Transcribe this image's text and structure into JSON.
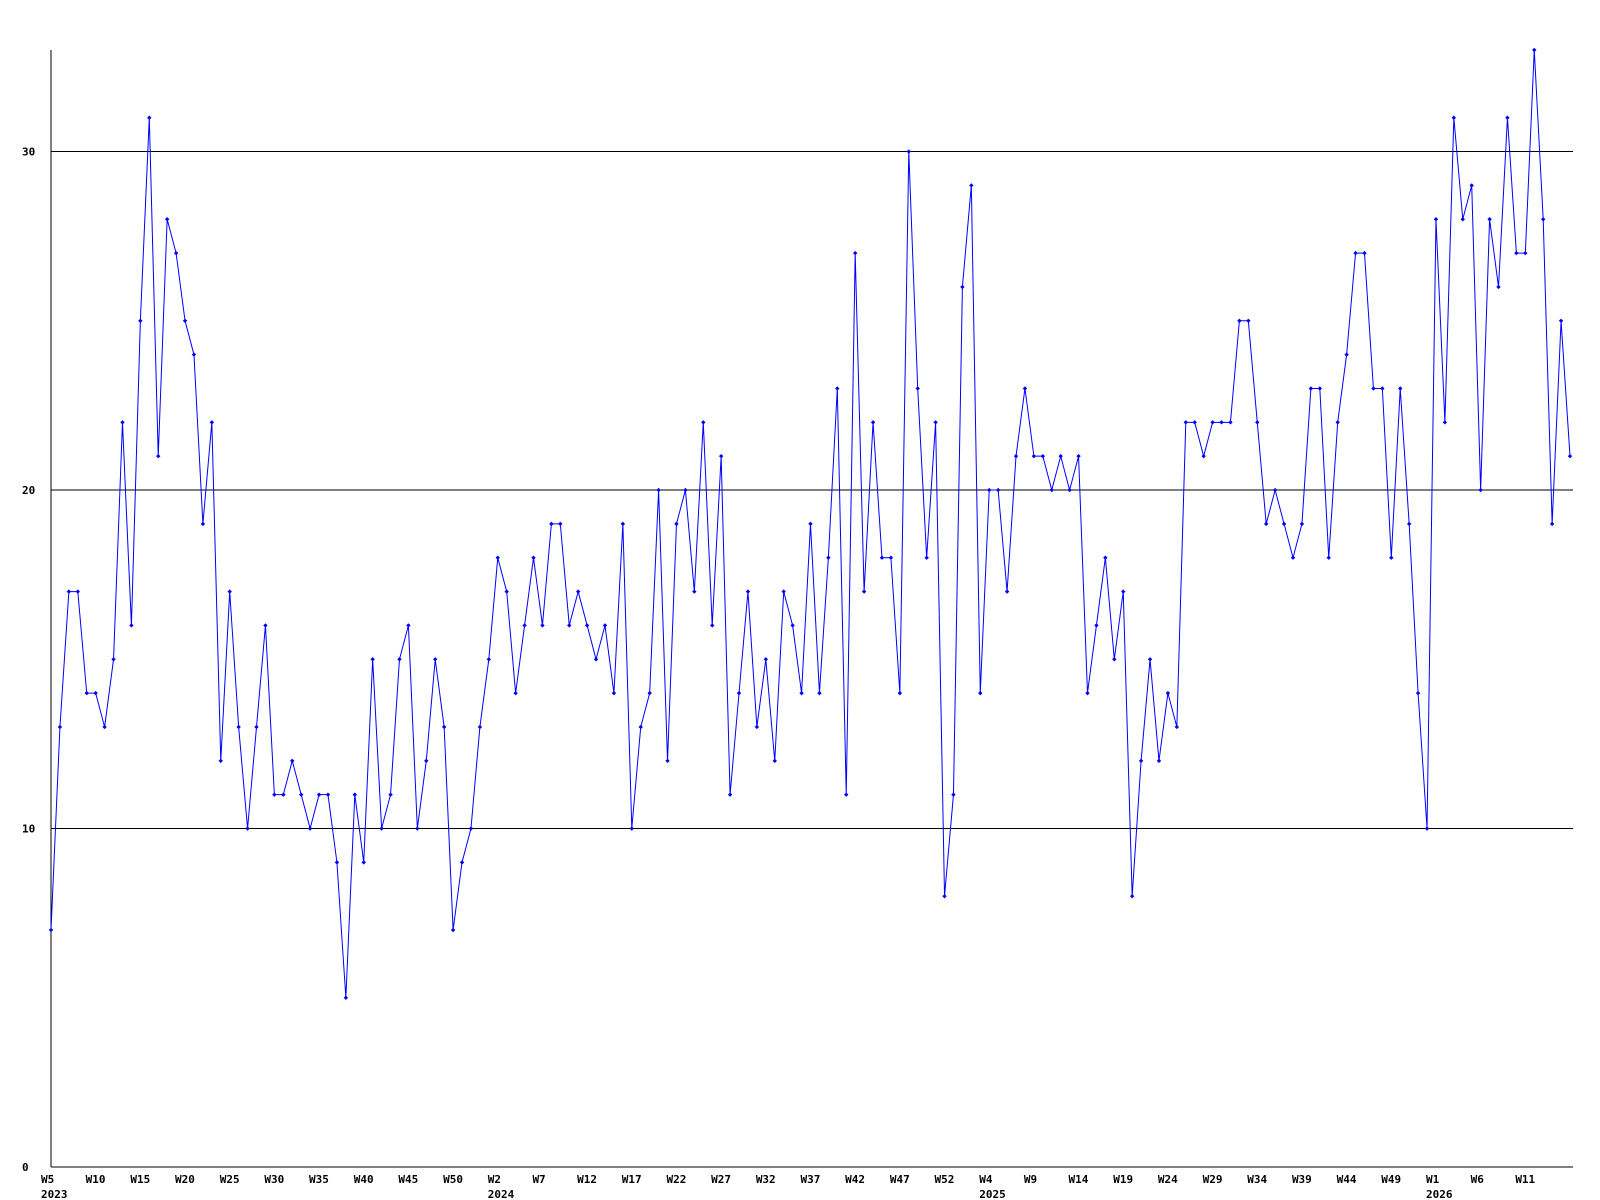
{
  "chart_data": {
    "type": "line",
    "color": "#0000ff",
    "grid": true,
    "ylim": [
      0,
      33
    ],
    "yticks": [
      0,
      10,
      20,
      30
    ],
    "categories": [
      "W5",
      null,
      null,
      null,
      null,
      "W10",
      null,
      null,
      null,
      null,
      "W15",
      null,
      null,
      null,
      null,
      "W20",
      null,
      null,
      null,
      null,
      "W25",
      null,
      null,
      null,
      null,
      "W30",
      null,
      null,
      null,
      null,
      "W35",
      null,
      null,
      null,
      null,
      "W40",
      null,
      null,
      null,
      null,
      "W45",
      null,
      null,
      null,
      null,
      "W50",
      null,
      null,
      null,
      null,
      "W2",
      null,
      null,
      null,
      null,
      "W7",
      null,
      null,
      null,
      null,
      "W12",
      null,
      null,
      null,
      null,
      "W17",
      null,
      null,
      null,
      null,
      "W22",
      null,
      null,
      null,
      null,
      "W27",
      null,
      null,
      null,
      null,
      "W32",
      null,
      null,
      null,
      null,
      "W37",
      null,
      null,
      null,
      null,
      "W42",
      null,
      null,
      null,
      null,
      "W47",
      null,
      null,
      null,
      null,
      "W52",
      null,
      null,
      null,
      null,
      "W4",
      null,
      null,
      null,
      null,
      "W9",
      null,
      null,
      null,
      null,
      "W14",
      null,
      null,
      null,
      null,
      "W19",
      null,
      null,
      null,
      null,
      "W24",
      null,
      null,
      null,
      null,
      "W29",
      null,
      null,
      null,
      null,
      "W34",
      null,
      null,
      null,
      null,
      "W39",
      null,
      null,
      null,
      null,
      "W44",
      null,
      null,
      null,
      null,
      "W49",
      null,
      null,
      null,
      null,
      "W1",
      null,
      null,
      null,
      null,
      "W6",
      null,
      null,
      null,
      null,
      "W11",
      null,
      null,
      null,
      null,
      null
    ],
    "category_years": [
      "2023",
      null,
      null,
      null,
      null,
      null,
      null,
      null,
      null,
      null,
      null,
      null,
      null,
      null,
      null,
      null,
      null,
      null,
      null,
      null,
      null,
      null,
      null,
      null,
      null,
      null,
      null,
      null,
      null,
      null,
      null,
      null,
      null,
      null,
      null,
      null,
      null,
      null,
      null,
      null,
      null,
      null,
      null,
      null,
      null,
      null,
      null,
      null,
      null,
      null,
      "2024",
      null,
      null,
      null,
      null,
      null,
      null,
      null,
      null,
      null,
      null,
      null,
      null,
      null,
      null,
      null,
      null,
      null,
      null,
      null,
      null,
      null,
      null,
      null,
      null,
      null,
      null,
      null,
      null,
      null,
      null,
      null,
      null,
      null,
      null,
      null,
      null,
      null,
      null,
      null,
      null,
      null,
      null,
      null,
      null,
      null,
      null,
      null,
      null,
      null,
      null,
      null,
      null,
      null,
      null,
      "2025",
      null,
      null,
      null,
      null,
      null,
      null,
      null,
      null,
      null,
      null,
      null,
      null,
      null,
      null,
      null,
      null,
      null,
      null,
      null,
      null,
      null,
      null,
      null,
      null,
      null,
      null,
      null,
      null,
      null,
      null,
      null,
      null,
      null,
      null,
      null,
      null,
      null,
      null,
      null,
      null,
      null,
      null,
      null,
      null,
      null,
      null,
      null,
      null,
      null,
      "2026",
      null,
      null,
      null,
      null,
      null,
      null,
      null,
      null,
      null,
      null,
      null,
      null,
      null,
      null,
      null
    ],
    "values": [
      7,
      13,
      17,
      17,
      14,
      14,
      13,
      15,
      22,
      16,
      25,
      31,
      21,
      28,
      27,
      25,
      24,
      19,
      22,
      12,
      17,
      13,
      10,
      13,
      16,
      11,
      11,
      12,
      11,
      10,
      11,
      11,
      9,
      5,
      11,
      9,
      15,
      10,
      11,
      15,
      16,
      10,
      12,
      15,
      13,
      7,
      9,
      10,
      13,
      15,
      18,
      17,
      14,
      16,
      18,
      16,
      19,
      19,
      16,
      17,
      16,
      15,
      16,
      14,
      19,
      10,
      13,
      14,
      20,
      12,
      19,
      20,
      17,
      22,
      16,
      21,
      11,
      14,
      17,
      13,
      15,
      12,
      17,
      16,
      14,
      19,
      14,
      18,
      23,
      11,
      27,
      17,
      22,
      18,
      18,
      14,
      30,
      23,
      18,
      22,
      8,
      11,
      26,
      29,
      14,
      20,
      20,
      17,
      21,
      23,
      21,
      21,
      20,
      21,
      20,
      21,
      14,
      16,
      18,
      15,
      17,
      8,
      12,
      15,
      12,
      14,
      13,
      22,
      22,
      21,
      22,
      22,
      22,
      25,
      25,
      22,
      19,
      20,
      19,
      18,
      19,
      23,
      23,
      18,
      22,
      24,
      27,
      27,
      23,
      23,
      18,
      23,
      19,
      14,
      10,
      28,
      22,
      31,
      28,
      29,
      20,
      28,
      26,
      31,
      27,
      27,
      33,
      28,
      19,
      25,
      21
    ]
  }
}
